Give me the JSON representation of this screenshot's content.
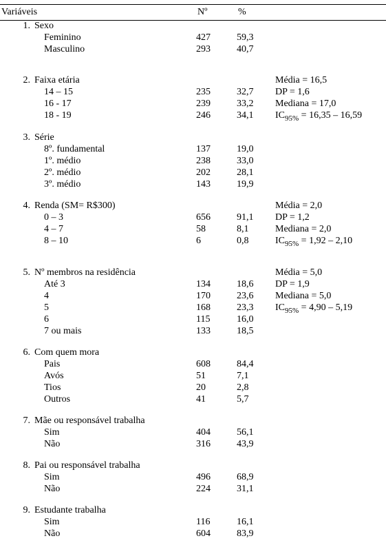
{
  "header": {
    "variaveis": "Variáveis",
    "n": "Nº",
    "pct": "%"
  },
  "sections": [
    {
      "num": "1.",
      "title": "Sexo",
      "stat_on_title": "",
      "rows": [
        {
          "label": "Feminino",
          "n": "427",
          "pct": "59,3",
          "stat": ""
        },
        {
          "label": "Masculino",
          "n": "293",
          "pct": "40,7",
          "stat": ""
        }
      ],
      "gap_after": "large"
    },
    {
      "num": "2.",
      "title": "Faixa etária",
      "stat_on_title": "Média = 16,5",
      "rows": [
        {
          "label": "14 – 15",
          "n": "235",
          "pct": "32,7",
          "stat": "DP = 1,6"
        },
        {
          "label": "16 - 17",
          "n": "239",
          "pct": "33,2",
          "stat": "Mediana = 17,0"
        },
        {
          "label": "18 - 19",
          "n": "246",
          "pct": "34,1",
          "stat": "IC₉₅%  = 16,35 – 16,59",
          "ic": true
        }
      ],
      "gap_after": "normal"
    },
    {
      "num": "3.",
      "title": "Série",
      "stat_on_title": "",
      "rows": [
        {
          "label": "8º. fundamental",
          "n": "137",
          "pct": "19,0",
          "stat": ""
        },
        {
          "label": "1º. médio",
          "n": "238",
          "pct": "33,0",
          "stat": ""
        },
        {
          "label": "2º. médio",
          "n": "202",
          "pct": "28,1",
          "stat": ""
        },
        {
          "label": "3º. médio",
          "n": "143",
          "pct": "19,9",
          "stat": ""
        }
      ],
      "gap_after": "normal"
    },
    {
      "num": "4.",
      "title": "Renda (SM= R$300)",
      "stat_on_title": "Média = 2,0",
      "rows": [
        {
          "label": "0 – 3",
          "n": "656",
          "pct": "91,1",
          "stat": "DP = 1,2"
        },
        {
          "label": "4 – 7",
          "n": "58",
          "pct": "8,1",
          "stat": "Mediana = 2,0"
        },
        {
          "label": "8 – 10",
          "n": "6",
          "pct": "0,8",
          "stat": "IC₉₅%  = 1,92 – 2,10",
          "ic": true
        }
      ],
      "gap_after": "large"
    },
    {
      "num": "5.",
      "title": "Nº membros na residência",
      "stat_on_title": "Média = 5,0",
      "rows": [
        {
          "label": "Até 3",
          "n": "134",
          "pct": "18,6",
          "stat": "DP = 1,9"
        },
        {
          "label": "4",
          "n": "170",
          "pct": "23,6",
          "stat": "Mediana = 5,0"
        },
        {
          "label": "5",
          "n": "168",
          "pct": "23,3",
          "stat": "IC₉₅%  = 4,90 – 5,19",
          "ic": true
        },
        {
          "label": "6",
          "n": "115",
          "pct": "16,0",
          "stat": ""
        },
        {
          "label": "7 ou mais",
          "n": "133",
          "pct": "18,5",
          "stat": ""
        }
      ],
      "gap_after": "normal"
    },
    {
      "num": "6.",
      "title": "Com quem mora",
      "stat_on_title": "",
      "rows": [
        {
          "label": "Pais",
          "n": "608",
          "pct": "84,4",
          "stat": ""
        },
        {
          "label": "Avós",
          "n": "51",
          "pct": "7,1",
          "stat": ""
        },
        {
          "label": "Tios",
          "n": "20",
          "pct": "2,8",
          "stat": ""
        },
        {
          "label": "Outros",
          "n": "41",
          "pct": "5,7",
          "stat": ""
        }
      ],
      "gap_after": "normal"
    },
    {
      "num": "7.",
      "title": "Mãe ou responsável trabalha",
      "stat_on_title": "",
      "rows": [
        {
          "label": "Sim",
          "n": "404",
          "pct": "56,1",
          "stat": ""
        },
        {
          "label": "Não",
          "n": "316",
          "pct": "43,9",
          "stat": ""
        }
      ],
      "gap_after": "normal"
    },
    {
      "num": "8.",
      "title": "Pai ou responsável trabalha",
      "stat_on_title": "",
      "rows": [
        {
          "label": "Sim",
          "n": "496",
          "pct": "68,9",
          "stat": ""
        },
        {
          "label": "Não",
          "n": "224",
          "pct": "31,1",
          "stat": ""
        }
      ],
      "gap_after": "normal"
    },
    {
      "num": "9.",
      "title": "Estudante trabalha",
      "stat_on_title": "",
      "rows": [
        {
          "label": "Sim",
          "n": "116",
          "pct": "16,1",
          "stat": ""
        },
        {
          "label": "Não",
          "n": "604",
          "pct": "83,9",
          "stat": ""
        }
      ],
      "gap_after": "none"
    }
  ]
}
